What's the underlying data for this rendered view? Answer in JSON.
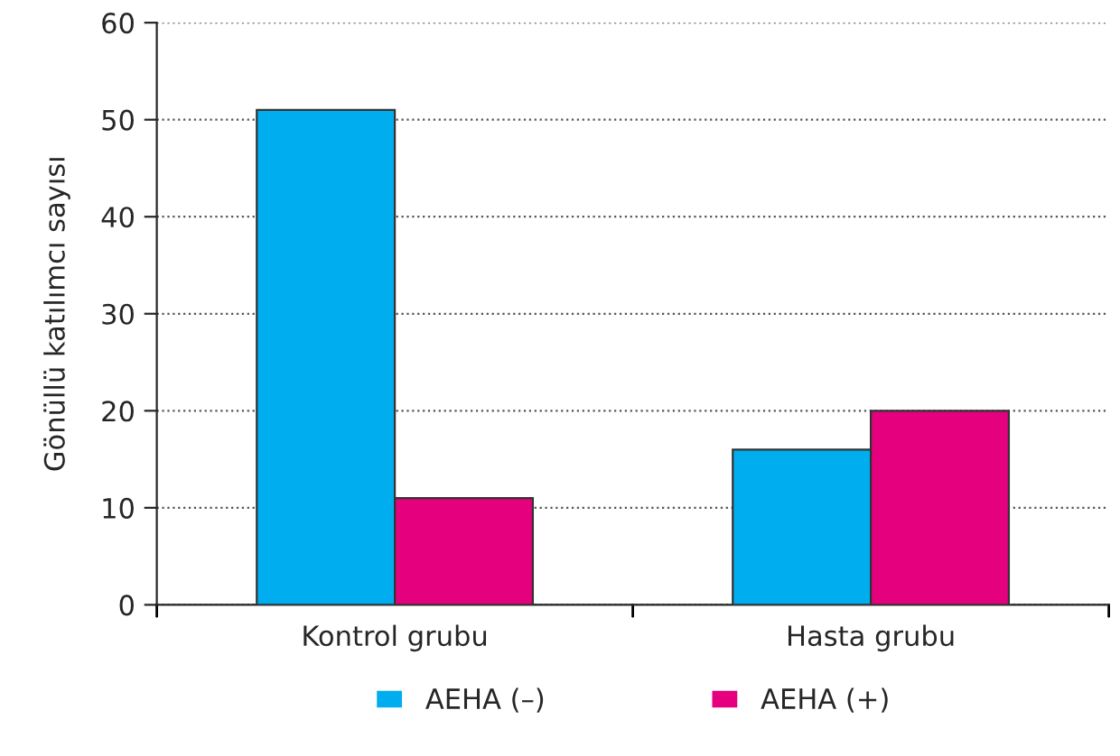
{
  "chart_data": {
    "type": "bar",
    "ylabel": "Gönüllü katılımcı sayısı",
    "categories": [
      "Kontrol grubu",
      "Hasta grubu"
    ],
    "series": [
      {
        "name": "AEHA (–)",
        "color": "#00aeef",
        "values": [
          51,
          16
        ]
      },
      {
        "name": "AEHA (+)",
        "color": "#e5007d",
        "values": [
          11,
          20
        ]
      }
    ],
    "ylim": [
      0,
      60
    ],
    "yticks": [
      0,
      10,
      20,
      30,
      40,
      50,
      60
    ],
    "grid": "y",
    "legend": "bottom"
  }
}
